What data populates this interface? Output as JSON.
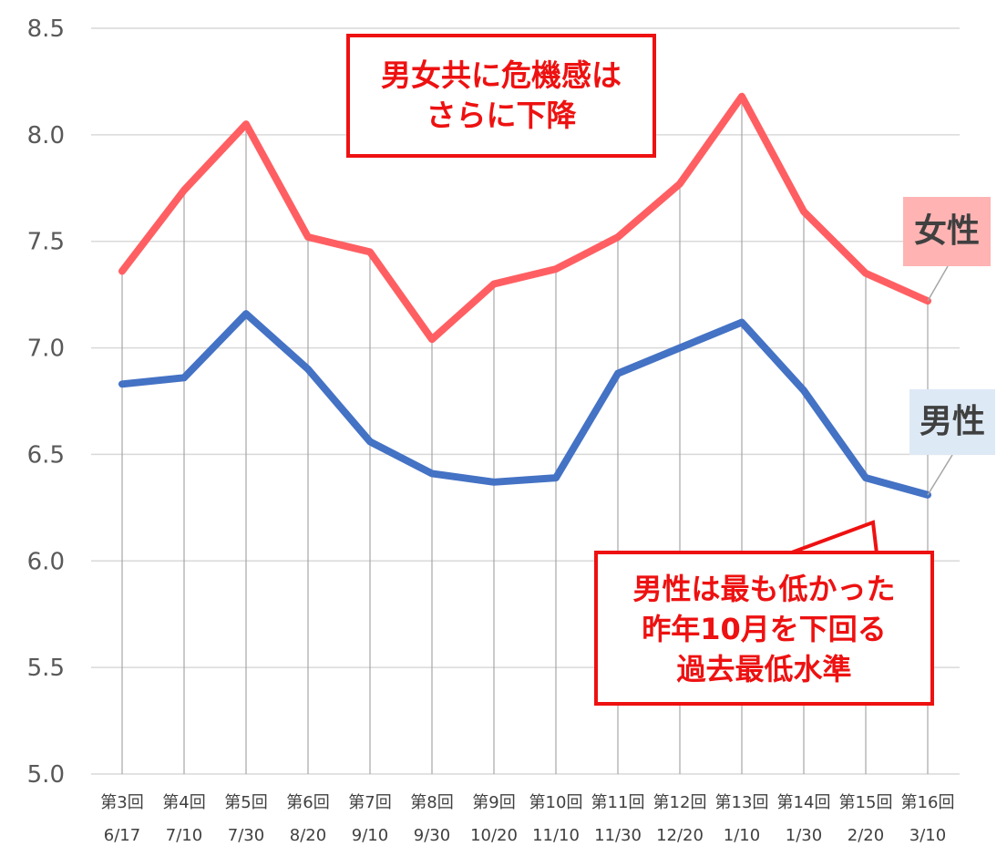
{
  "chart_data": {
    "type": "line",
    "categories": [
      {
        "round": "第3回",
        "date": "6/17"
      },
      {
        "round": "第4回",
        "date": "7/10"
      },
      {
        "round": "第5回",
        "date": "7/30"
      },
      {
        "round": "第6回",
        "date": "8/20"
      },
      {
        "round": "第7回",
        "date": "9/10"
      },
      {
        "round": "第8回",
        "date": "9/30"
      },
      {
        "round": "第9回",
        "date": "10/20"
      },
      {
        "round": "第10回",
        "date": "11/10"
      },
      {
        "round": "第11回",
        "date": "11/30"
      },
      {
        "round": "第12回",
        "date": "12/20"
      },
      {
        "round": "第13回",
        "date": "1/10"
      },
      {
        "round": "第14回",
        "date": "1/30"
      },
      {
        "round": "第15回",
        "date": "2/20"
      },
      {
        "round": "第16回",
        "date": "3/10"
      }
    ],
    "ylim": [
      5.0,
      8.5
    ],
    "yticks": [
      "5.0",
      "5.5",
      "6.0",
      "6.5",
      "7.0",
      "7.5",
      "8.0",
      "8.5"
    ],
    "grid": true,
    "series": [
      {
        "name": "女性",
        "color": "#ff5f62",
        "values": [
          7.36,
          7.74,
          8.05,
          7.52,
          7.45,
          7.04,
          7.3,
          7.37,
          7.52,
          7.77,
          8.18,
          7.64,
          7.35,
          7.22
        ]
      },
      {
        "name": "男性",
        "color": "#4472c4",
        "values": [
          6.83,
          6.86,
          7.16,
          6.9,
          6.56,
          6.41,
          6.37,
          6.39,
          6.88,
          7.0,
          7.12,
          6.8,
          6.39,
          6.31
        ]
      }
    ],
    "annotations": {
      "top": [
        "男女共に危機感は",
        "さらに下降"
      ],
      "bottom": [
        "男性は最も低かった",
        "昨年10月を下回る",
        "過去最低水準"
      ]
    }
  }
}
